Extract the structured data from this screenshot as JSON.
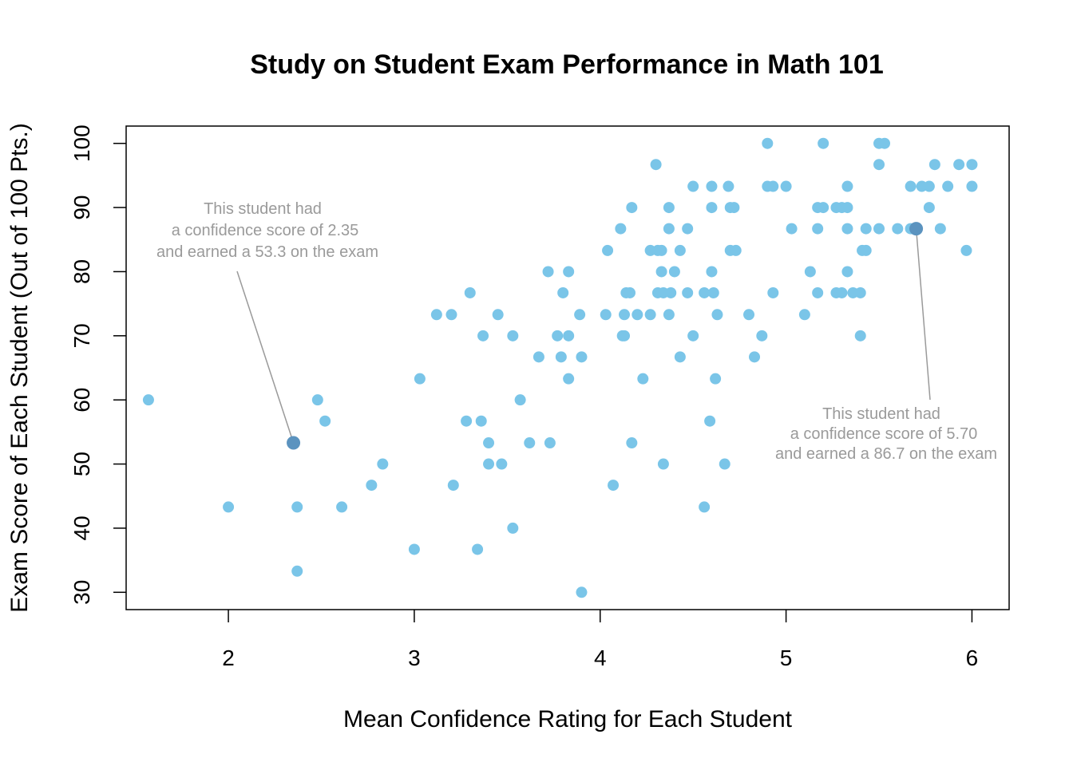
{
  "chart_data": {
    "type": "scatter",
    "title": "Study on Student Exam Performance in Math 101",
    "xlabel": "Mean Confidence Rating for Each Student",
    "ylabel": "Exam Score of Each Student (Out of 100 Pts.)",
    "xlim": [
      1.45,
      6.2
    ],
    "ylim": [
      27.3,
      102.7
    ],
    "x_ticks": [
      2,
      3,
      4,
      5,
      6
    ],
    "y_ticks": [
      30,
      40,
      50,
      60,
      70,
      80,
      90,
      100
    ],
    "grid": false,
    "point_color": "#7ac5e8",
    "highlight_color": "#5b93bf",
    "annotation_color": "#9a9a9a",
    "points": [
      [
        1.57,
        60.0
      ],
      [
        2.0,
        43.3
      ],
      [
        2.37,
        43.3
      ],
      [
        2.37,
        33.3
      ],
      [
        2.48,
        60.0
      ],
      [
        2.52,
        56.7
      ],
      [
        2.61,
        43.3
      ],
      [
        2.77,
        46.7
      ],
      [
        2.83,
        50.0
      ],
      [
        3.0,
        36.7
      ],
      [
        3.03,
        63.3
      ],
      [
        3.12,
        73.3
      ],
      [
        3.2,
        73.3
      ],
      [
        3.21,
        46.7
      ],
      [
        3.28,
        56.7
      ],
      [
        3.3,
        76.7
      ],
      [
        3.34,
        36.7
      ],
      [
        3.36,
        56.7
      ],
      [
        3.37,
        70.0
      ],
      [
        3.4,
        53.3
      ],
      [
        3.4,
        50.0
      ],
      [
        3.45,
        73.3
      ],
      [
        3.47,
        50.0
      ],
      [
        3.53,
        70.0
      ],
      [
        3.53,
        40.0
      ],
      [
        3.57,
        60.0
      ],
      [
        3.62,
        53.3
      ],
      [
        3.67,
        66.7
      ],
      [
        3.72,
        80.0
      ],
      [
        3.73,
        53.3
      ],
      [
        3.77,
        70.0
      ],
      [
        3.79,
        66.7
      ],
      [
        3.8,
        76.7
      ],
      [
        3.83,
        70.0
      ],
      [
        3.83,
        80.0
      ],
      [
        3.83,
        63.3
      ],
      [
        3.89,
        73.3
      ],
      [
        3.9,
        66.7
      ],
      [
        3.9,
        30.0
      ],
      [
        4.03,
        73.3
      ],
      [
        4.04,
        83.3
      ],
      [
        4.07,
        46.7
      ],
      [
        4.11,
        86.7
      ],
      [
        4.12,
        70.0
      ],
      [
        4.13,
        70.0
      ],
      [
        4.13,
        73.3
      ],
      [
        4.14,
        76.7
      ],
      [
        4.16,
        76.7
      ],
      [
        4.17,
        90.0
      ],
      [
        4.17,
        53.3
      ],
      [
        4.2,
        73.3
      ],
      [
        4.23,
        63.3
      ],
      [
        4.27,
        83.3
      ],
      [
        4.27,
        73.3
      ],
      [
        4.3,
        96.7
      ],
      [
        4.31,
        83.3
      ],
      [
        4.31,
        76.7
      ],
      [
        4.33,
        83.3
      ],
      [
        4.33,
        80.0
      ],
      [
        4.34,
        76.7
      ],
      [
        4.34,
        50.0
      ],
      [
        4.37,
        86.7
      ],
      [
        4.37,
        90.0
      ],
      [
        4.37,
        73.3
      ],
      [
        4.38,
        76.7
      ],
      [
        4.4,
        80.0
      ],
      [
        4.43,
        83.3
      ],
      [
        4.43,
        66.7
      ],
      [
        4.47,
        86.7
      ],
      [
        4.47,
        76.7
      ],
      [
        4.5,
        93.3
      ],
      [
        4.5,
        70.0
      ],
      [
        4.56,
        76.7
      ],
      [
        4.56,
        43.3
      ],
      [
        4.59,
        56.7
      ],
      [
        4.6,
        93.3
      ],
      [
        4.6,
        90.0
      ],
      [
        4.6,
        80.0
      ],
      [
        4.61,
        76.7
      ],
      [
        4.62,
        63.3
      ],
      [
        4.63,
        73.3
      ],
      [
        4.67,
        50.0
      ],
      [
        4.69,
        93.3
      ],
      [
        4.7,
        90.0
      ],
      [
        4.7,
        83.3
      ],
      [
        4.72,
        90.0
      ],
      [
        4.73,
        83.3
      ],
      [
        4.8,
        73.3
      ],
      [
        4.83,
        66.7
      ],
      [
        4.87,
        70.0
      ],
      [
        4.9,
        100.0
      ],
      [
        4.9,
        93.3
      ],
      [
        4.93,
        93.3
      ],
      [
        4.93,
        76.7
      ],
      [
        5.0,
        93.3
      ],
      [
        5.03,
        86.7
      ],
      [
        5.1,
        73.3
      ],
      [
        5.13,
        80.0
      ],
      [
        5.17,
        90.0
      ],
      [
        5.17,
        86.7
      ],
      [
        5.17,
        76.7
      ],
      [
        5.2,
        100.0
      ],
      [
        5.2,
        90.0
      ],
      [
        5.27,
        90.0
      ],
      [
        5.27,
        76.7
      ],
      [
        5.3,
        76.7
      ],
      [
        5.3,
        90.0
      ],
      [
        5.33,
        93.3
      ],
      [
        5.33,
        90.0
      ],
      [
        5.33,
        86.7
      ],
      [
        5.33,
        80.0
      ],
      [
        5.36,
        76.7
      ],
      [
        5.4,
        76.7
      ],
      [
        5.4,
        70.0
      ],
      [
        5.41,
        83.3
      ],
      [
        5.43,
        86.7
      ],
      [
        5.43,
        83.3
      ],
      [
        5.5,
        100.0
      ],
      [
        5.5,
        96.7
      ],
      [
        5.5,
        86.7
      ],
      [
        5.53,
        100.0
      ],
      [
        5.6,
        86.7
      ],
      [
        5.67,
        93.3
      ],
      [
        5.67,
        86.7
      ],
      [
        5.73,
        93.3
      ],
      [
        5.77,
        93.3
      ],
      [
        5.77,
        90.0
      ],
      [
        5.8,
        96.7
      ],
      [
        5.83,
        86.7
      ],
      [
        5.87,
        93.3
      ],
      [
        5.93,
        96.7
      ],
      [
        5.97,
        83.3
      ],
      [
        6.0,
        96.7
      ],
      [
        6.0,
        93.3
      ]
    ],
    "highlighted_points": [
      [
        2.35,
        53.3
      ],
      [
        5.7,
        86.7
      ]
    ],
    "annotations": [
      {
        "lines": [
          "This student had",
          "a confidence score of 2.35",
          "and earned a 53.3 on the exam"
        ],
        "point": [
          2.35,
          53.3
        ]
      },
      {
        "lines": [
          "This student had",
          "a confidence score of 5.70",
          "and earned a 86.7 on the exam"
        ],
        "point": [
          5.7,
          86.7
        ]
      }
    ]
  }
}
